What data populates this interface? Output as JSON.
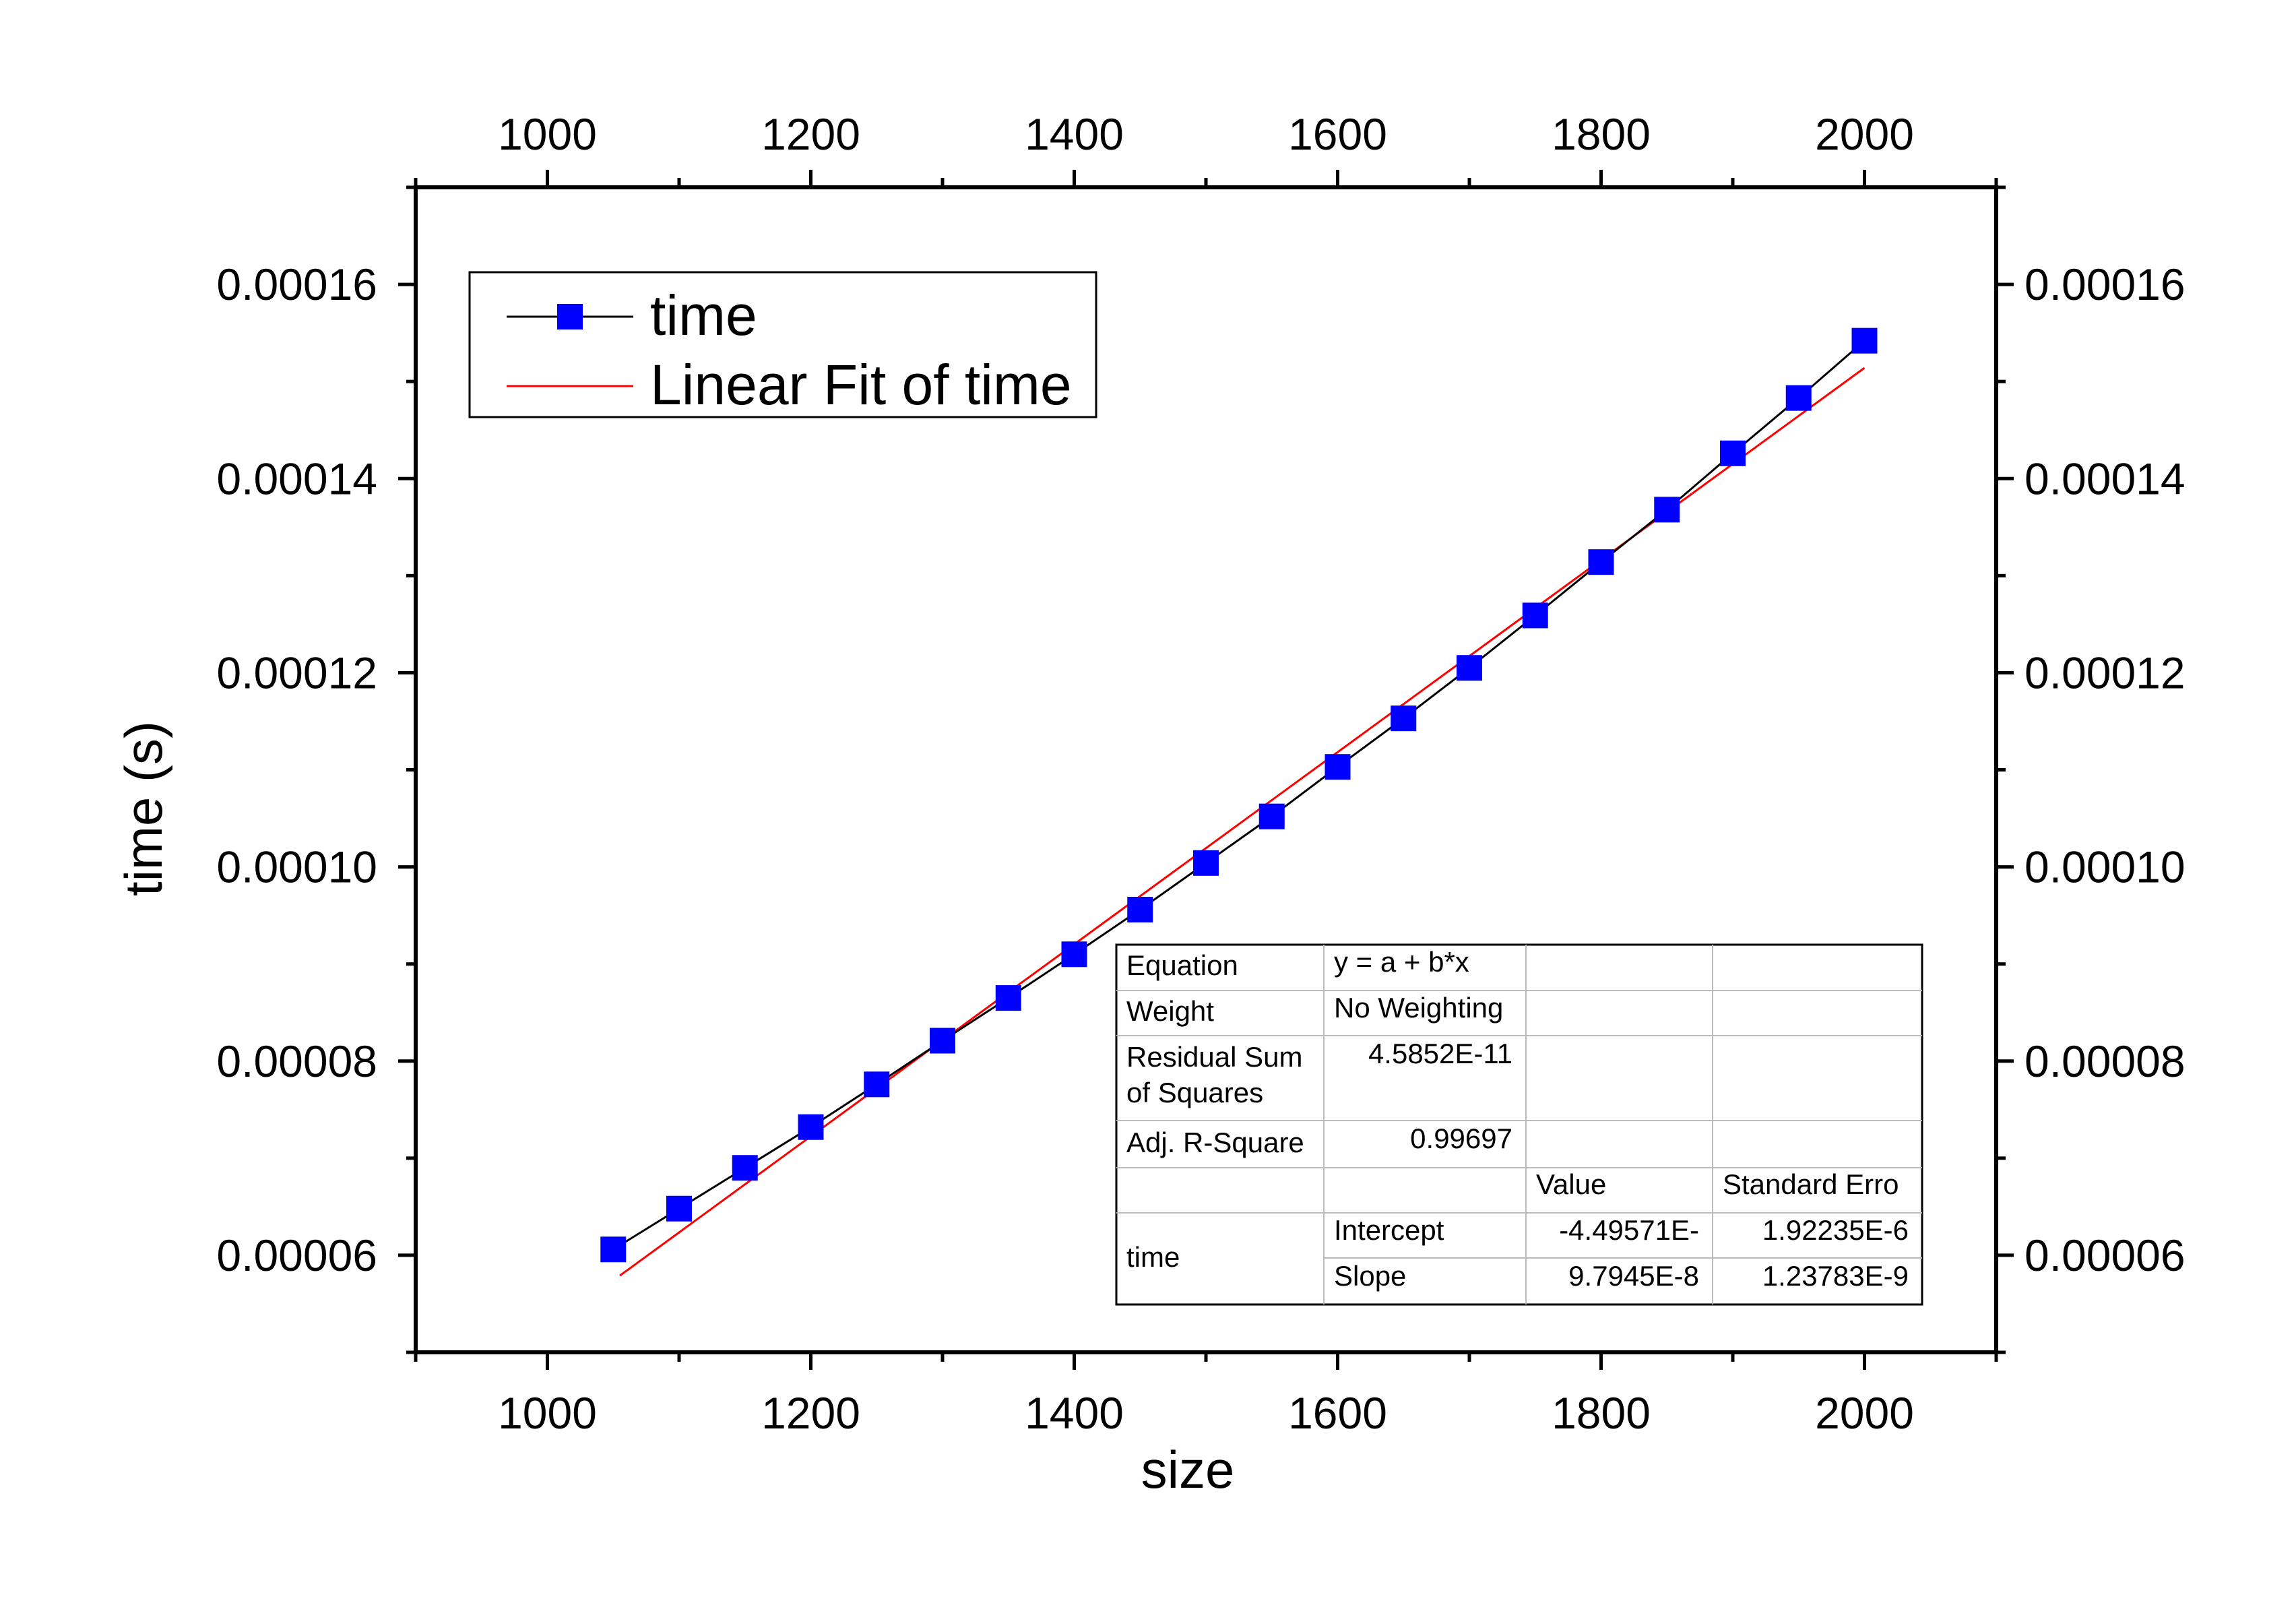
{
  "chart_data": {
    "type": "scatter",
    "xlabel": "size",
    "ylabel": "time (s)",
    "xlim": [
      900,
      2100
    ],
    "ylim": [
      5e-05,
      0.00017
    ],
    "x_ticks": [
      1000,
      1200,
      1400,
      1600,
      1800,
      2000
    ],
    "x_tick_labels": [
      "1000",
      "1200",
      "1400",
      "1600",
      "1800",
      "2000"
    ],
    "y_ticks": [
      6e-05,
      8e-05,
      0.0001,
      0.00012,
      0.00014,
      0.00016
    ],
    "y_tick_labels": [
      "0.00006",
      "0.00008",
      "0.00010",
      "0.00012",
      "0.00014",
      "0.00016"
    ],
    "mirror_axes": true,
    "grid": false,
    "legend_position": "top-left",
    "series": [
      {
        "name": "time",
        "style": "line+square-markers",
        "line_color": "#000000",
        "marker_color": "#0000FF",
        "x": [
          1050,
          1100,
          1150,
          1200,
          1250,
          1300,
          1350,
          1400,
          1450,
          1500,
          1550,
          1600,
          1650,
          1700,
          1750,
          1800,
          1850,
          1900,
          1950,
          2000
        ],
        "y": [
          6.06e-05,
          6.48e-05,
          6.9e-05,
          7.32e-05,
          7.76e-05,
          8.21e-05,
          8.65e-05,
          9.1e-05,
          9.56e-05,
          0.0001004,
          0.0001052,
          0.0001103,
          0.0001153,
          0.0001205,
          0.0001259,
          0.0001314,
          0.0001368,
          0.0001426,
          0.0001483,
          0.0001542
        ]
      },
      {
        "name": "Linear Fit of time",
        "style": "line",
        "line_color": "#FF0000",
        "x": [
          1055,
          2000
        ],
        "y": [
          5.79e-05,
          0.0001514
        ]
      }
    ],
    "stats_table": {
      "rows": [
        [
          "Equation",
          "y = a + b*x",
          "",
          ""
        ],
        [
          "Weight",
          "No Weighting",
          "",
          ""
        ],
        [
          "Residual Sum of Squares",
          "4.5852E-11",
          "",
          ""
        ],
        [
          "Adj. R-Square",
          "0.99697",
          "",
          ""
        ],
        [
          "",
          "",
          "Value",
          "Standard Erro"
        ],
        [
          "time",
          "Intercept",
          "-4.49571E-",
          "1.92235E-6"
        ],
        [
          "",
          "Slope",
          "9.7945E-8",
          "1.23783E-9"
        ]
      ]
    }
  }
}
